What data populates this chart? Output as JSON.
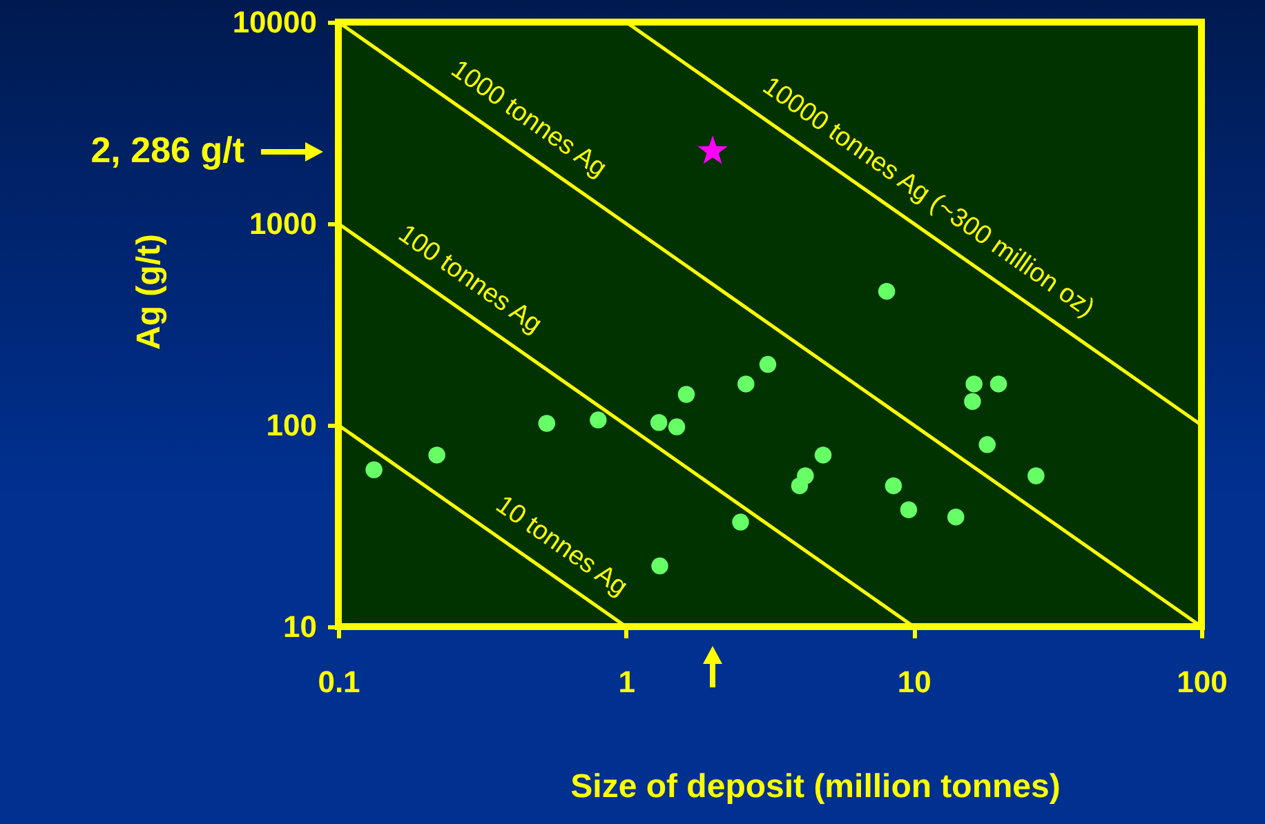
{
  "chart_data": {
    "type": "scatter",
    "xlabel": "Size of deposit (million tonnes)",
    "ylabel": "Ag (g/t)",
    "log": "xy",
    "xlim": [
      0.1,
      100
    ],
    "ylim": [
      10,
      10000
    ],
    "xticks": [
      0.1,
      1,
      10,
      100
    ],
    "yticks": [
      10,
      100,
      1000,
      10000
    ],
    "grid": false,
    "series": [
      {
        "marker": "circle",
        "color": "#66ff66",
        "x": [
          0.133,
          0.22,
          0.53,
          0.8,
          1.3,
          1.5,
          1.62,
          2.61,
          3.11,
          1.31,
          2.5,
          8.05,
          16.2,
          19.7,
          16.0,
          18.0,
          26.6,
          4.84,
          4.2,
          4.01,
          8.5,
          9.6,
          14.0
        ],
        "values": [
          60,
          71,
          102,
          106,
          103,
          98,
          142,
          160,
          200,
          20,
          33,
          461,
          160,
          160,
          131,
          80,
          56,
          71,
          56,
          50,
          50,
          38,
          35
        ]
      },
      {
        "marker": "star",
        "color": "#ff00ff",
        "x": [
          2.0
        ],
        "values": [
          2286
        ]
      },
      {
        "type": "line",
        "line_style": "solid",
        "color": "#ffff00",
        "x": [
          0.1,
          1
        ],
        "values": [
          100,
          10
        ]
      },
      {
        "type": "line",
        "line_style": "solid",
        "color": "#ffff00",
        "x": [
          0.1,
          10
        ],
        "values": [
          1000,
          10
        ]
      },
      {
        "type": "line",
        "line_style": "solid",
        "color": "#ffff00",
        "x": [
          0.1,
          100
        ],
        "values": [
          10000,
          10
        ]
      },
      {
        "type": "line",
        "line_style": "solid",
        "color": "#ffff00",
        "x": [
          1,
          100
        ],
        "values": [
          10000,
          100
        ]
      }
    ],
    "annotations": [
      {
        "text": "10 tonnes Ag",
        "x": 0.52,
        "y": 19
      },
      {
        "text": "100 tonnes Ag",
        "x": 0.25,
        "y": 400
      },
      {
        "text": "1000 tonnes Ag",
        "x": 0.4,
        "y": 2500
      },
      {
        "text": "10000 tonnes Ag (~300 million oz)",
        "x": 9.8,
        "y": 1020
      },
      "2, 286 g/t"
    ]
  }
}
